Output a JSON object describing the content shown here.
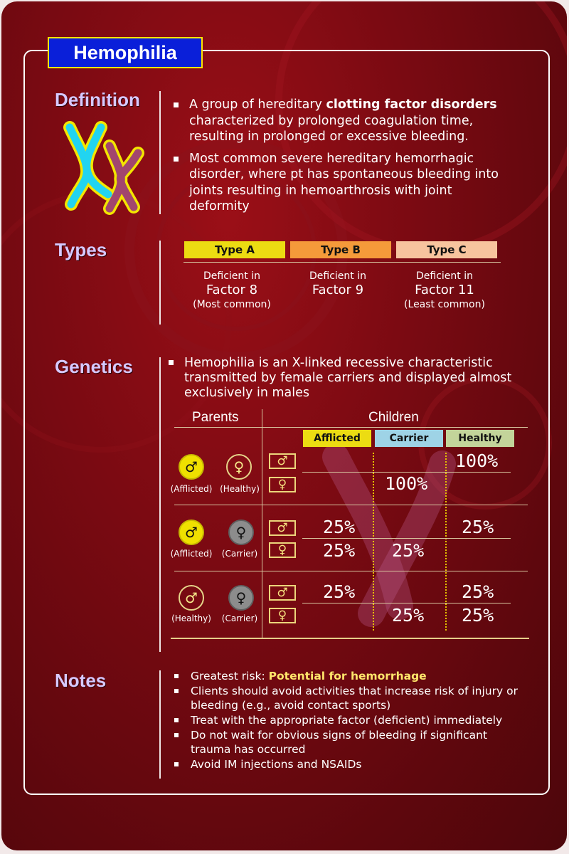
{
  "title": "Hemophilia",
  "sections": {
    "definition": "Definition",
    "types": "Types",
    "genetics": "Genetics",
    "notes": "Notes"
  },
  "definition": {
    "b1_pre": "A group of hereditary ",
    "b1_bold": "clotting factor disorders",
    "b1_post": " characterized by prolonged coagulation time, resulting in prolonged or excessive bleeding.",
    "b2": "Most common severe hereditary hemorrhagic disorder, where pt has spontaneous bleeding into joints resulting in hemoarthrosis with joint deformity"
  },
  "types": [
    {
      "label": "Type A",
      "color": "#ecdc12",
      "line1": "Deficient in",
      "factor": "Factor 8",
      "note": "(Most common)"
    },
    {
      "label": "Type B",
      "color": "#f59a3a",
      "line1": "Deficient in",
      "factor": "Factor 9",
      "note": ""
    },
    {
      "label": "Type C",
      "color": "#f7c49e",
      "line1": "Deficient in",
      "factor": "Factor 11",
      "note": "(Least  common)"
    }
  ],
  "genetics": {
    "bullet": "Hemophilia is an X-linked recessive characteristic transmitted by female carriers and displayed almost exclusively in males",
    "parents_header": "Parents",
    "children_header": "Children",
    "columns": [
      {
        "label": "Afflicted",
        "color": "#ecdc12"
      },
      {
        "label": "Carrier",
        "color": "#9ed3e6"
      },
      {
        "label": "Healthy",
        "color": "#c3d49a"
      }
    ],
    "male_symbol": "♂",
    "female_symbol": "♀",
    "rows": [
      {
        "father": "(Afflicted)",
        "mother": "(Healthy)",
        "male": [
          "",
          "",
          "100%"
        ],
        "female": [
          "",
          "100%",
          ""
        ]
      },
      {
        "father": "(Afflicted)",
        "mother": "(Carrier)",
        "male": [
          "25%",
          "",
          "25%"
        ],
        "female": [
          "25%",
          "25%",
          ""
        ]
      },
      {
        "father": "(Healthy)",
        "mother": "(Carrier)",
        "male": [
          "25%",
          "",
          "25%"
        ],
        "female": [
          "",
          "25%",
          "25%"
        ]
      }
    ]
  },
  "notes": {
    "n1_pre": "Greatest risk: ",
    "n1_bold": "Potential for hemorrhage",
    "n2": "Clients should avoid activities that increase risk of injury or bleeding (e.g., avoid contact sports)",
    "n3": "Treat with the appropriate factor (deficient) immediately",
    "n4": "Do not wait for obvious signs of bleeding if significant trauma has occurred",
    "n5": "Avoid IM injections and NSAIDs"
  }
}
